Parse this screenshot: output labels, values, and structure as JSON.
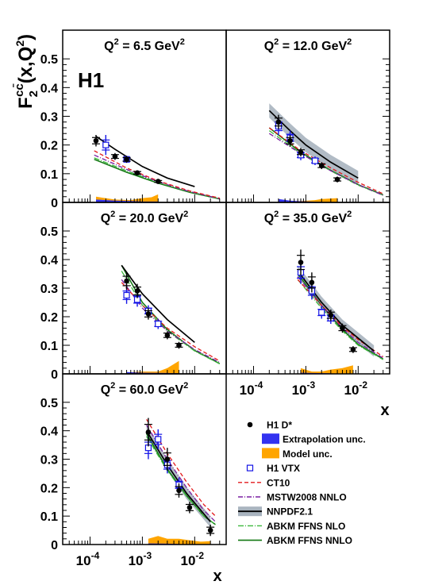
{
  "experiment_label": "H1",
  "y_axis_title": {
    "base": "F",
    "sub": "2",
    "sup": "cc̄",
    "args": "(x,Q",
    "args_sup": "2",
    "args_end": ")"
  },
  "x_axis_title": "x",
  "x_tick_labels": [
    {
      "base": "10",
      "exp": "-4",
      "value": 0.0001
    },
    {
      "base": "10",
      "exp": "-3",
      "value": 0.001
    },
    {
      "base": "10",
      "exp": "-2",
      "value": 0.01
    }
  ],
  "y_tick_labels": [
    "0",
    "0.1",
    "0.2",
    "0.3",
    "0.4",
    "0.5"
  ],
  "colors": {
    "data": "#000000",
    "vtx": "#1414e6",
    "extrapolation": "#3232f0",
    "model": "#ffa500",
    "ct10": "#e31a1c",
    "mstw": "#7a1fa2",
    "nnpdf_band": "#a9b4bf",
    "nnpdf_line": "#000000",
    "abkm_nlo": "#3cb83c",
    "abkm_nnlo": "#117711"
  },
  "legend": [
    {
      "key": "h1dstar",
      "label": "H1 D*"
    },
    {
      "key": "extrap",
      "label": "Extrapolation unc."
    },
    {
      "key": "model",
      "label": "Model unc."
    },
    {
      "key": "vtx",
      "label": "H1 VTX"
    },
    {
      "key": "ct10",
      "label": "CT10"
    },
    {
      "key": "mstw",
      "label": "MSTW2008 NNLO"
    },
    {
      "key": "nnpdf",
      "label": "NNPDF2.1"
    },
    {
      "key": "abkm_nlo",
      "label": "ABKM FFNS NLO"
    },
    {
      "key": "abkm_nnlo",
      "label": "ABKM FFNS NNLO"
    }
  ],
  "chart_data": {
    "type": "scatter",
    "x_scale": "log",
    "xlim": [
      3e-05,
      0.04
    ],
    "ylim": [
      0,
      0.6
    ],
    "grid": false,
    "legend_position": "bottom-right",
    "panels": [
      {
        "q2_label": "Q",
        "q2_sup": "2",
        "q2_value": " = 6.5 GeV",
        "q2_unit_sup": "2",
        "h1_dstar": [
          {
            "x": 0.00013,
            "y": 0.215,
            "err": 0.02
          },
          {
            "x": 0.0003,
            "y": 0.16,
            "err": 0.012
          },
          {
            "x": 0.0005,
            "y": 0.15,
            "err": 0.012
          },
          {
            "x": 0.0008,
            "y": 0.103,
            "err": 0.008
          },
          {
            "x": 0.002,
            "y": 0.073,
            "err": 0.006
          }
        ],
        "h1_vtx": [
          {
            "x": 0.0002,
            "y": 0.2,
            "err": 0.035
          },
          {
            "x": 0.0005,
            "y": 0.15,
            "err": 0.012
          }
        ],
        "nnpdf": [
          [
            0.00013,
            0.23
          ],
          [
            0.0003,
            0.185
          ],
          [
            0.001,
            0.125
          ],
          [
            0.003,
            0.085
          ],
          [
            0.01,
            0.055
          ]
        ],
        "ct10": [
          [
            0.00012,
            0.18
          ],
          [
            0.0005,
            0.12
          ],
          [
            0.002,
            0.075
          ],
          [
            0.008,
            0.04
          ],
          [
            0.03,
            0.015
          ]
        ],
        "mstw": [
          [
            0.00012,
            0.165
          ],
          [
            0.0005,
            0.115
          ],
          [
            0.002,
            0.072
          ],
          [
            0.008,
            0.038
          ],
          [
            0.03,
            0.013
          ]
        ],
        "abkm_nlo": [
          [
            0.00012,
            0.155
          ],
          [
            0.0005,
            0.11
          ],
          [
            0.002,
            0.07
          ],
          [
            0.008,
            0.037
          ],
          [
            0.03,
            0.013
          ]
        ],
        "abkm_nnlo": [
          [
            0.00012,
            0.15
          ],
          [
            0.0005,
            0.105
          ],
          [
            0.002,
            0.067
          ],
          [
            0.008,
            0.035
          ],
          [
            0.03,
            0.012
          ]
        ],
        "extrapolation": [
          [
            0.00013,
            0.01
          ],
          [
            0.0003,
            0.006
          ],
          [
            0.0006,
            0.005
          ],
          [
            0.001,
            0.003
          ],
          [
            0.002,
            0.003
          ]
        ],
        "model": [
          [
            0.00013,
            0.02
          ],
          [
            0.0003,
            0.01
          ],
          [
            0.0006,
            0.008
          ],
          [
            0.001,
            0.015
          ],
          [
            0.0015,
            0.018
          ],
          [
            0.002,
            0.028
          ]
        ]
      },
      {
        "q2_label": "Q",
        "q2_sup": "2",
        "q2_value": " = 12.0 GeV",
        "q2_unit_sup": "2",
        "h1_dstar": [
          {
            "x": 0.0003,
            "y": 0.28,
            "err": 0.025
          },
          {
            "x": 0.0005,
            "y": 0.215,
            "err": 0.02
          },
          {
            "x": 0.0008,
            "y": 0.175,
            "err": 0.015
          },
          {
            "x": 0.002,
            "y": 0.128,
            "err": 0.012
          },
          {
            "x": 0.004,
            "y": 0.08,
            "err": 0.01
          }
        ],
        "h1_vtx": [
          {
            "x": 0.0003,
            "y": 0.265,
            "err": 0.03
          },
          {
            "x": 0.0005,
            "y": 0.225,
            "err": 0.025
          },
          {
            "x": 0.0008,
            "y": 0.165,
            "err": 0.018
          },
          {
            "x": 0.0015,
            "y": 0.145,
            "err": 0.015
          }
        ],
        "nnpdf": [
          [
            0.0002,
            0.32
          ],
          [
            0.0005,
            0.25
          ],
          [
            0.001,
            0.2
          ],
          [
            0.003,
            0.14
          ],
          [
            0.01,
            0.085
          ]
        ],
        "ct10": [
          [
            0.0002,
            0.26
          ],
          [
            0.0008,
            0.18
          ],
          [
            0.003,
            0.12
          ],
          [
            0.01,
            0.07
          ],
          [
            0.03,
            0.03
          ]
        ],
        "mstw": [
          [
            0.0002,
            0.24
          ],
          [
            0.0008,
            0.17
          ],
          [
            0.003,
            0.11
          ],
          [
            0.01,
            0.062
          ],
          [
            0.03,
            0.025
          ]
        ],
        "abkm_nlo": [
          [
            0.0002,
            0.25
          ],
          [
            0.0008,
            0.17
          ],
          [
            0.003,
            0.11
          ],
          [
            0.01,
            0.06
          ],
          [
            0.03,
            0.025
          ]
        ],
        "abkm_nnlo": [
          [
            0.0002,
            0.26
          ],
          [
            0.0008,
            0.175
          ],
          [
            0.003,
            0.112
          ],
          [
            0.01,
            0.062
          ],
          [
            0.03,
            0.026
          ]
        ],
        "nnpdf_band_halfwidth": 0.025,
        "extrapolation": [
          [
            0.0003,
            0.012
          ],
          [
            0.0005,
            0.006
          ],
          [
            0.0008,
            0.004
          ],
          [
            0.002,
            0.002
          ]
        ],
        "model": [
          [
            0.0003,
            0.005
          ],
          [
            0.0008,
            0.005
          ],
          [
            0.0015,
            0.008
          ],
          [
            0.002,
            0.012
          ],
          [
            0.004,
            0.015
          ]
        ]
      },
      {
        "q2_label": "Q",
        "q2_sup": "2",
        "q2_value": " = 20.0 GeV",
        "q2_unit_sup": "2",
        "h1_dstar": [
          {
            "x": 0.0005,
            "y": 0.325,
            "err": 0.03
          },
          {
            "x": 0.0008,
            "y": 0.29,
            "err": 0.025
          },
          {
            "x": 0.0013,
            "y": 0.21,
            "err": 0.02
          },
          {
            "x": 0.003,
            "y": 0.135,
            "err": 0.014
          },
          {
            "x": 0.005,
            "y": 0.1,
            "err": 0.012
          }
        ],
        "h1_vtx": [
          {
            "x": 0.0005,
            "y": 0.275,
            "err": 0.03
          },
          {
            "x": 0.0008,
            "y": 0.26,
            "err": 0.025
          },
          {
            "x": 0.0013,
            "y": 0.22,
            "err": 0.02
          },
          {
            "x": 0.002,
            "y": 0.175,
            "err": 0.018
          }
        ],
        "nnpdf": [
          [
            0.0004,
            0.38
          ],
          [
            0.001,
            0.28
          ],
          [
            0.003,
            0.19
          ],
          [
            0.01,
            0.11
          ]
        ],
        "ct10": [
          [
            0.0004,
            0.32
          ],
          [
            0.001,
            0.24
          ],
          [
            0.003,
            0.16
          ],
          [
            0.01,
            0.095
          ],
          [
            0.03,
            0.045
          ]
        ],
        "mstw": [
          [
            0.0004,
            0.33
          ],
          [
            0.001,
            0.23
          ],
          [
            0.003,
            0.15
          ],
          [
            0.01,
            0.085
          ],
          [
            0.03,
            0.04
          ]
        ],
        "abkm_nlo": [
          [
            0.0004,
            0.36
          ],
          [
            0.001,
            0.24
          ],
          [
            0.003,
            0.15
          ],
          [
            0.01,
            0.08
          ],
          [
            0.03,
            0.035
          ]
        ],
        "abkm_nnlo": [
          [
            0.0004,
            0.38
          ],
          [
            0.001,
            0.25
          ],
          [
            0.003,
            0.155
          ],
          [
            0.01,
            0.082
          ],
          [
            0.03,
            0.036
          ]
        ],
        "extrapolation": [
          [
            0.0005,
            0.006
          ],
          [
            0.001,
            0.004
          ],
          [
            0.003,
            0.003
          ],
          [
            0.005,
            0.002
          ]
        ],
        "model": [
          [
            0.0005,
            0.005
          ],
          [
            0.001,
            0.008
          ],
          [
            0.002,
            0.008
          ],
          [
            0.003,
            0.02
          ],
          [
            0.005,
            0.045
          ]
        ]
      },
      {
        "q2_label": "Q",
        "q2_sup": "2",
        "q2_value": " = 35.0 GeV",
        "q2_unit_sup": "2",
        "h1_dstar": [
          {
            "x": 0.0008,
            "y": 0.39,
            "err": 0.045
          },
          {
            "x": 0.0013,
            "y": 0.32,
            "err": 0.035
          },
          {
            "x": 0.003,
            "y": 0.205,
            "err": 0.02
          },
          {
            "x": 0.005,
            "y": 0.16,
            "err": 0.016
          },
          {
            "x": 0.008,
            "y": 0.085,
            "err": 0.012
          }
        ],
        "h1_vtx": [
          {
            "x": 0.0008,
            "y": 0.355,
            "err": 0.04
          },
          {
            "x": 0.0013,
            "y": 0.29,
            "err": 0.03
          },
          {
            "x": 0.002,
            "y": 0.215,
            "err": 0.022
          },
          {
            "x": 0.003,
            "y": 0.195,
            "err": 0.02
          }
        ],
        "nnpdf": [
          [
            0.0007,
            0.36
          ],
          [
            0.002,
            0.25
          ],
          [
            0.005,
            0.17
          ],
          [
            0.02,
            0.08
          ]
        ],
        "ct10": [
          [
            0.0007,
            0.33
          ],
          [
            0.002,
            0.24
          ],
          [
            0.005,
            0.165
          ],
          [
            0.01,
            0.12
          ],
          [
            0.03,
            0.06
          ]
        ],
        "mstw": [
          [
            0.0007,
            0.34
          ],
          [
            0.002,
            0.24
          ],
          [
            0.005,
            0.16
          ],
          [
            0.01,
            0.11
          ],
          [
            0.03,
            0.055
          ]
        ],
        "abkm_nlo": [
          [
            0.0007,
            0.33
          ],
          [
            0.002,
            0.23
          ],
          [
            0.005,
            0.15
          ],
          [
            0.01,
            0.1
          ],
          [
            0.03,
            0.05
          ]
        ],
        "abkm_nnlo": [
          [
            0.0007,
            0.35
          ],
          [
            0.002,
            0.24
          ],
          [
            0.005,
            0.155
          ],
          [
            0.01,
            0.103
          ],
          [
            0.03,
            0.052
          ]
        ],
        "nnpdf_band_halfwidth": 0.02,
        "extrapolation": [
          [
            0.0008,
            0.004
          ],
          [
            0.0013,
            0.003
          ],
          [
            0.003,
            0.002
          ]
        ],
        "model": [
          [
            0.0008,
            0.02
          ],
          [
            0.0013,
            0.008
          ],
          [
            0.002,
            0.008
          ],
          [
            0.003,
            0.015
          ],
          [
            0.005,
            0.02
          ],
          [
            0.008,
            0.03
          ]
        ]
      },
      {
        "q2_label": "Q",
        "q2_sup": "2",
        "q2_value": " = 60.0 GeV",
        "q2_unit_sup": "2",
        "h1_dstar": [
          {
            "x": 0.0013,
            "y": 0.395,
            "err": 0.05
          },
          {
            "x": 0.003,
            "y": 0.3,
            "err": 0.04
          },
          {
            "x": 0.005,
            "y": 0.19,
            "err": 0.025
          },
          {
            "x": 0.008,
            "y": 0.13,
            "err": 0.02
          },
          {
            "x": 0.02,
            "y": 0.05,
            "err": 0.02
          }
        ],
        "h1_vtx": [
          {
            "x": 0.0013,
            "y": 0.34,
            "err": 0.04
          },
          {
            "x": 0.002,
            "y": 0.37,
            "err": 0.035
          },
          {
            "x": 0.003,
            "y": 0.28,
            "err": 0.03
          },
          {
            "x": 0.005,
            "y": 0.21,
            "err": 0.025
          }
        ],
        "nnpdf": [
          [
            0.0012,
            0.4
          ],
          [
            0.003,
            0.28
          ],
          [
            0.007,
            0.18
          ],
          [
            0.02,
            0.08
          ]
        ],
        "ct10": [
          [
            0.0012,
            0.44
          ],
          [
            0.003,
            0.32
          ],
          [
            0.007,
            0.22
          ],
          [
            0.015,
            0.14
          ],
          [
            0.025,
            0.1
          ]
        ],
        "mstw": [
          [
            0.0012,
            0.42
          ],
          [
            0.003,
            0.3
          ],
          [
            0.007,
            0.2
          ],
          [
            0.015,
            0.12
          ],
          [
            0.025,
            0.08
          ]
        ],
        "abkm_nlo": [
          [
            0.0012,
            0.38
          ],
          [
            0.003,
            0.26
          ],
          [
            0.007,
            0.17
          ],
          [
            0.015,
            0.1
          ],
          [
            0.025,
            0.07
          ]
        ],
        "abkm_nnlo": [
          [
            0.0012,
            0.39
          ],
          [
            0.003,
            0.265
          ],
          [
            0.007,
            0.172
          ],
          [
            0.015,
            0.1
          ],
          [
            0.025,
            0.07
          ]
        ],
        "nnpdf_band_halfwidth": 0.02,
        "extrapolation": [
          [
            0.0013,
            0.004
          ],
          [
            0.003,
            0.003
          ],
          [
            0.005,
            0.002
          ]
        ],
        "model": [
          [
            0.0013,
            0.02
          ],
          [
            0.002,
            0.03
          ],
          [
            0.003,
            0.02
          ],
          [
            0.005,
            0.02
          ],
          [
            0.008,
            0.015
          ],
          [
            0.013,
            0.01
          ],
          [
            0.02,
            0.012
          ]
        ]
      }
    ]
  }
}
